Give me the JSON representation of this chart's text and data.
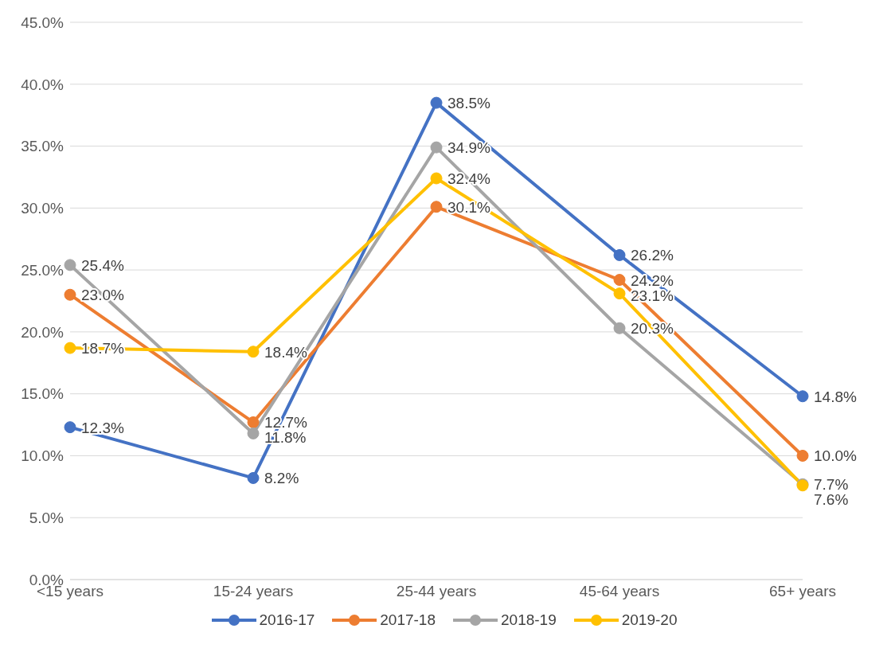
{
  "chart_data": {
    "type": "line",
    "categories": [
      "<15 years",
      "15-24 years",
      "25-44 years",
      "45-64 years",
      "65+ years"
    ],
    "series": [
      {
        "name": "2016-17",
        "color": "#4472c4",
        "values": [
          12.3,
          8.2,
          38.5,
          26.2,
          14.8
        ],
        "value_labels": [
          "12.3%",
          "8.2%",
          "38.5%",
          "26.2%",
          "14.8%"
        ]
      },
      {
        "name": "2017-18",
        "color": "#ed7d31",
        "values": [
          23.0,
          12.7,
          30.1,
          24.2,
          10.0
        ],
        "value_labels": [
          "23.0%",
          "12.7%",
          "30.1%",
          "24.2%",
          "10.0%"
        ]
      },
      {
        "name": "2018-19",
        "color": "#a5a5a5",
        "values": [
          25.4,
          11.8,
          34.9,
          20.3,
          7.7
        ],
        "value_labels": [
          "25.4%",
          "11.8%",
          "34.9%",
          "20.3%",
          "7.7%"
        ]
      },
      {
        "name": "2019-20",
        "color": "#ffc000",
        "values": [
          18.7,
          18.4,
          32.4,
          23.1,
          7.6
        ],
        "value_labels": [
          "18.7%",
          "18.4%",
          "32.4%",
          "23.1%",
          "7.6%"
        ]
      }
    ],
    "ylim": [
      0,
      45
    ],
    "yticks": [
      {
        "value": 0,
        "label": "0.0%"
      },
      {
        "value": 5,
        "label": "5.0%"
      },
      {
        "value": 10,
        "label": "10.0%"
      },
      {
        "value": 15,
        "label": "15.0%"
      },
      {
        "value": 20,
        "label": "20.0%"
      },
      {
        "value": 25,
        "label": "25.0%"
      },
      {
        "value": 30,
        "label": "30.0%"
      },
      {
        "value": 35,
        "label": "35.0%"
      },
      {
        "value": 40,
        "label": "40.0%"
      },
      {
        "value": 45,
        "label": "45.0%"
      }
    ],
    "grid": "y",
    "legend": "bottom",
    "marker": "circle",
    "line_style": "solid"
  }
}
